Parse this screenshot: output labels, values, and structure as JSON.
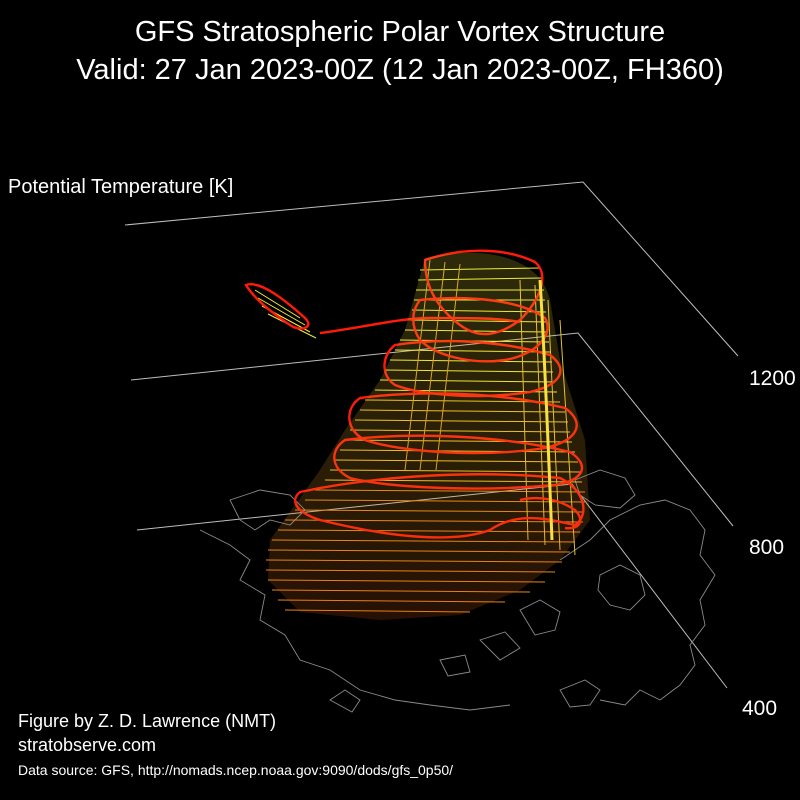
{
  "title": {
    "line1": "GFS Stratospheric Polar Vortex Structure",
    "line2": "Valid: 27 Jan 2023-00Z  (12 Jan 2023-00Z, FH360)"
  },
  "axis": {
    "label": "Potential Temperature [K]",
    "ticks": [
      "1200",
      "800",
      "400"
    ]
  },
  "credits": {
    "author": "Figure by Z. D. Lawrence (NMT)",
    "site": "stratobserve.com",
    "source": "Data source: GFS, http://nomads.ncep.noaa.gov:9090/dods/gfs_0p50/"
  },
  "colors": {
    "background": "#000000",
    "text": "#ffffff",
    "gridlines": "#bdbdbd",
    "coastlines": "#8a8a8a",
    "vortex_low": "#e06010",
    "vortex_mid": "#f0b020",
    "vortex_high": "#f5f040",
    "edge_contours": "#ff1a0a"
  }
}
